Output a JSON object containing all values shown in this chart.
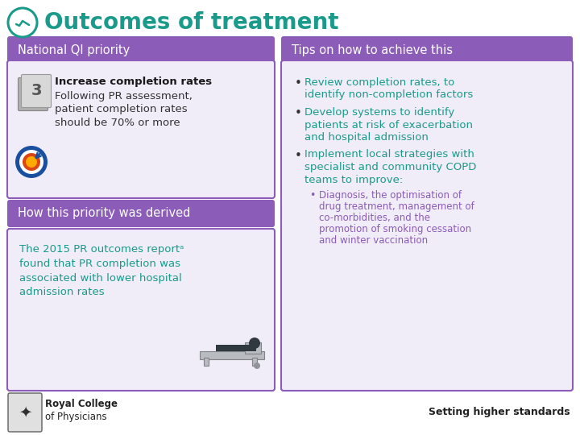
{
  "title": "Outcomes of treatment",
  "title_color": "#1a9a8a",
  "background_color": "#ffffff",
  "purple_header": "#8b5cb8",
  "purple_light_bg": "#f0ecf8",
  "teal_color": "#1a9a8a",
  "left_header1": "National QI priority",
  "left_header2": "How this priority was derived",
  "right_header": "Tips on how to achieve this",
  "priority_bold": "Increase completion rates",
  "priority_line2": "Following PR assessment,",
  "priority_line3": "patient completion rates",
  "priority_line4": "should be 70% or more",
  "derived_lines": [
    "The 2015 PR outcomes reportᵃ",
    "found that PR completion was",
    "associated with lower hospital",
    "admission rates"
  ],
  "tip1_lines": [
    "Review completion rates, to",
    "identify non-completion factors"
  ],
  "tip2_lines": [
    "Develop systems to identify",
    "patients at risk of exacerbation",
    "and hospital admission"
  ],
  "tip3_lines": [
    "Implement local strategies with",
    "specialist and community COPD",
    "teams to improve:"
  ],
  "sub_lines": [
    "Diagnosis, the optimisation of",
    "drug treatment, management of",
    "co-morbidities, and the",
    "promotion of smoking cessation",
    "and winter vaccination"
  ],
  "footer_right": "Setting higher standards",
  "footer_college": "Royal College",
  "footer_physicians": "of Physicians"
}
